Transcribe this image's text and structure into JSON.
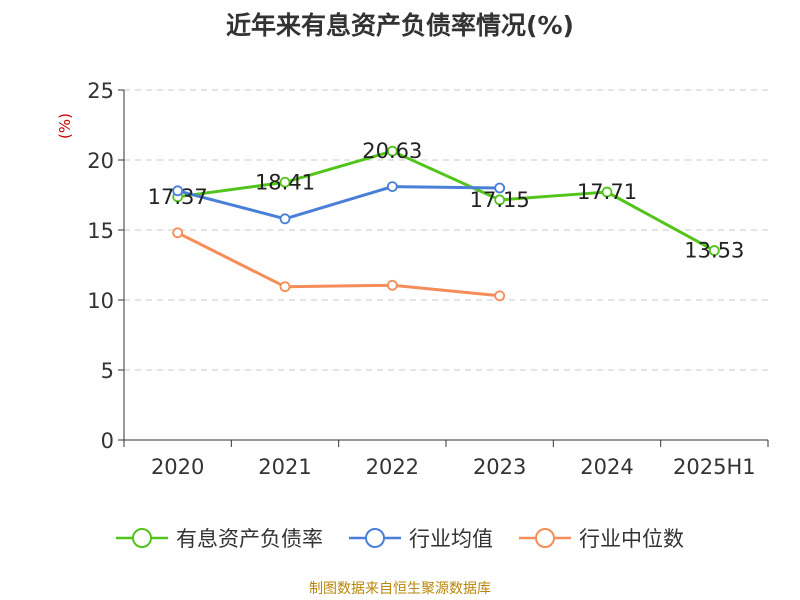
{
  "chart_data": {
    "type": "line",
    "title": "近年来有息资产负债率情况(%)",
    "ylabel": "(%)",
    "xlabel": "",
    "categories": [
      "2020",
      "2021",
      "2022",
      "2023",
      "2024",
      "2025H1"
    ],
    "ylim": [
      0,
      25
    ],
    "yticks": [
      0,
      5,
      10,
      15,
      20,
      25
    ],
    "grid": true,
    "legend_position": "bottom",
    "series": [
      {
        "name": "有息资产负债率",
        "color": "#52c41a",
        "values": [
          17.37,
          18.41,
          20.63,
          17.15,
          17.71,
          13.53
        ],
        "show_labels": true
      },
      {
        "name": "行业均值",
        "color": "#4a7fd8",
        "values": [
          17.8,
          15.8,
          18.1,
          18.0,
          null,
          null
        ],
        "show_labels": false
      },
      {
        "name": "行业中位数",
        "color": "#f58d58",
        "values": [
          14.8,
          10.95,
          11.05,
          10.3,
          null,
          null
        ],
        "show_labels": false
      }
    ]
  },
  "source": "制图数据来自恒生聚源数据库"
}
